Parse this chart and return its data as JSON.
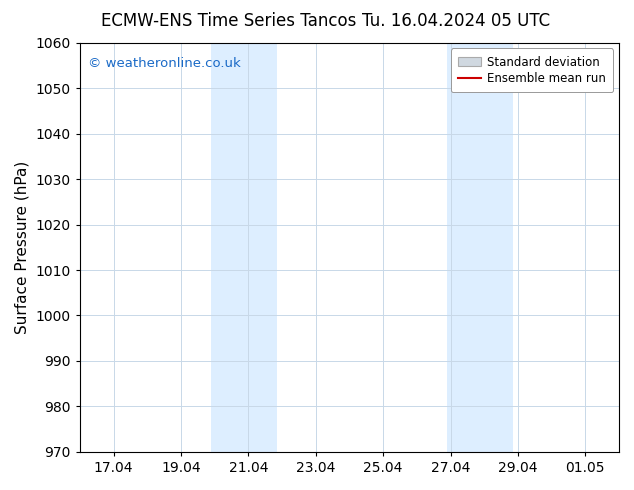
{
  "title_left": "ECMW-ENS Time Series Tancos",
  "title_right": "Tu. 16.04.2024 05 UTC",
  "ylabel": "Surface Pressure (hPa)",
  "ylim": [
    970,
    1060
  ],
  "yticks": [
    970,
    980,
    990,
    1000,
    1010,
    1020,
    1030,
    1040,
    1050,
    1060
  ],
  "xtick_labels": [
    "17.04",
    "19.04",
    "21.04",
    "23.04",
    "25.04",
    "27.04",
    "29.04",
    "01.05"
  ],
  "shade_color": "#ddeeff",
  "shade_color2": "#cce0f0",
  "watermark_text": "© weatheronline.co.uk",
  "watermark_color": "#1a6ac7",
  "legend_std_color": "#d0d8e0",
  "legend_mean_color": "#cc0000",
  "background_color": "#ffffff",
  "spine_color": "#000000",
  "grid_color": "#c8d8e8",
  "title_fontsize": 12,
  "tick_fontsize": 10,
  "ylabel_fontsize": 11
}
